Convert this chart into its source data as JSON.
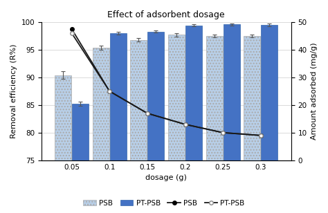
{
  "title": "Effect of adsorbent dosage",
  "xlabel": "dosage (g)",
  "ylabel_left": "Removal efficiency (R%)",
  "ylabel_right": "Amount adsorbed (mg/g)",
  "dosages": [
    0.05,
    0.1,
    0.15,
    0.2,
    0.25,
    0.3
  ],
  "PSB_bars": [
    90.4,
    95.4,
    96.8,
    97.7,
    97.5,
    97.5
  ],
  "PTPSB_bars": [
    85.2,
    98.0,
    98.3,
    99.4,
    99.6,
    99.5
  ],
  "PSB_bars_err": [
    0.7,
    0.4,
    0.3,
    0.3,
    0.3,
    0.3
  ],
  "PTPSB_bars_err": [
    0.4,
    0.3,
    0.2,
    0.2,
    0.2,
    0.2
  ],
  "PSB_line": [
    47.5,
    25.0,
    17.0,
    13.0,
    10.0,
    9.0
  ],
  "PTPSB_line": [
    46.0,
    25.0,
    17.0,
    13.0,
    10.0,
    9.0
  ],
  "ylim_left": [
    75.0,
    100.0
  ],
  "ylim_right": [
    0.0,
    50.0
  ],
  "yticks_left": [
    75.0,
    80.0,
    85.0,
    90.0,
    95.0,
    100.0
  ],
  "yticks_right": [
    0.0,
    10.0,
    20.0,
    30.0,
    40.0,
    50.0
  ],
  "bar_width": 0.022,
  "PSB_bar_color": "#b8cfe8",
  "PTPSB_bar_color": "#4472c4",
  "background_color": "#ffffff",
  "line_color": "#1a1a1a"
}
